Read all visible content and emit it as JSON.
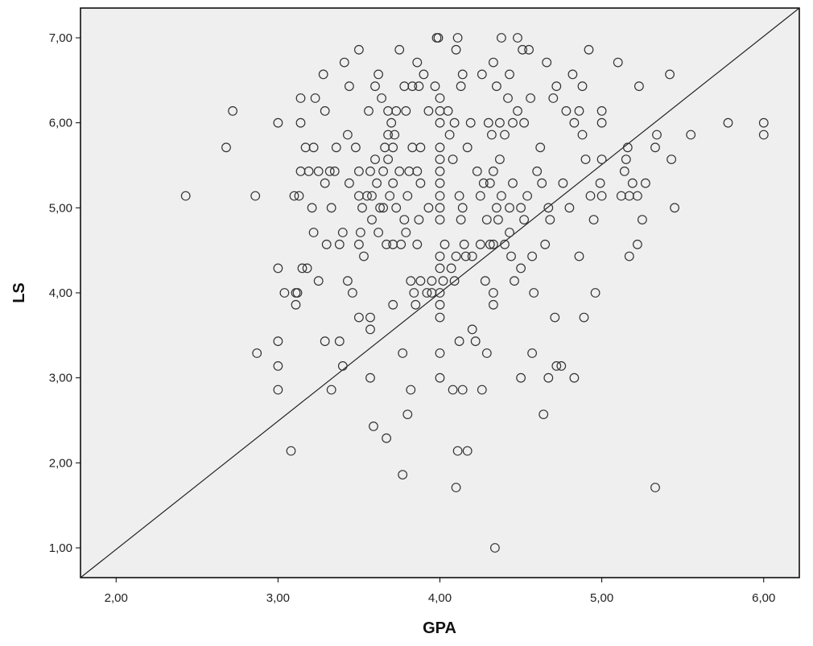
{
  "chart_data": {
    "type": "scatter",
    "title": "",
    "xlabel": "GPA",
    "ylabel": "LS",
    "xlim": [
      1.78,
      6.22
    ],
    "ylim": [
      0.65,
      7.35
    ],
    "x_ticks": [
      2,
      3,
      4,
      5,
      6
    ],
    "x_tick_labels": [
      "2,00",
      "3,00",
      "4,00",
      "5,00",
      "6,00"
    ],
    "y_ticks": [
      1,
      2,
      3,
      4,
      5,
      6,
      7
    ],
    "y_tick_labels": [
      "1,00",
      "2,00",
      "3,00",
      "4,00",
      "5,00",
      "6,00",
      "7,00"
    ],
    "grid": false,
    "reference_line": {
      "from": [
        1.78,
        0.65
      ],
      "to": [
        6.22,
        7.35
      ]
    },
    "colors": {
      "plot_background": "#efefef",
      "marker_stroke": "#333333",
      "line": "#222222"
    },
    "points": [
      [
        2.43,
        5.14
      ],
      [
        2.68,
        5.71
      ],
      [
        2.72,
        6.14
      ],
      [
        2.86,
        5.14
      ],
      [
        2.87,
        3.29
      ],
      [
        3.0,
        6.0
      ],
      [
        3.0,
        4.29
      ],
      [
        3.0,
        3.43
      ],
      [
        3.0,
        3.14
      ],
      [
        3.0,
        2.86
      ],
      [
        3.04,
        4.0
      ],
      [
        3.08,
        2.14
      ],
      [
        3.1,
        5.14
      ],
      [
        3.11,
        4.0
      ],
      [
        3.11,
        3.86
      ],
      [
        3.12,
        4.0
      ],
      [
        3.13,
        5.14
      ],
      [
        3.14,
        6.29
      ],
      [
        3.14,
        5.43
      ],
      [
        3.14,
        6.0
      ],
      [
        3.15,
        4.29
      ],
      [
        3.17,
        5.71
      ],
      [
        3.18,
        4.29
      ],
      [
        3.19,
        5.43
      ],
      [
        3.21,
        5.0
      ],
      [
        3.22,
        5.71
      ],
      [
        3.22,
        4.71
      ],
      [
        3.23,
        6.29
      ],
      [
        3.25,
        4.14
      ],
      [
        3.25,
        5.43
      ],
      [
        3.28,
        6.57
      ],
      [
        3.29,
        3.43
      ],
      [
        3.29,
        5.29
      ],
      [
        3.29,
        6.14
      ],
      [
        3.3,
        4.57
      ],
      [
        3.32,
        5.43
      ],
      [
        3.33,
        2.86
      ],
      [
        3.33,
        5.0
      ],
      [
        3.35,
        5.43
      ],
      [
        3.36,
        5.71
      ],
      [
        3.38,
        4.57
      ],
      [
        3.38,
        3.43
      ],
      [
        3.4,
        4.71
      ],
      [
        3.4,
        3.14
      ],
      [
        3.41,
        6.71
      ],
      [
        3.43,
        5.86
      ],
      [
        3.43,
        4.14
      ],
      [
        3.44,
        5.29
      ],
      [
        3.44,
        6.43
      ],
      [
        3.46,
        4.0
      ],
      [
        3.48,
        5.71
      ],
      [
        3.5,
        6.86
      ],
      [
        3.5,
        5.14
      ],
      [
        3.5,
        5.43
      ],
      [
        3.5,
        4.57
      ],
      [
        3.5,
        3.71
      ],
      [
        3.51,
        4.71
      ],
      [
        3.52,
        5.0
      ],
      [
        3.53,
        4.43
      ],
      [
        3.55,
        5.14
      ],
      [
        3.56,
        6.14
      ],
      [
        3.57,
        3.71
      ],
      [
        3.57,
        3.57
      ],
      [
        3.57,
        3.0
      ],
      [
        3.57,
        5.43
      ],
      [
        3.58,
        4.86
      ],
      [
        3.58,
        5.14
      ],
      [
        3.59,
        2.43
      ],
      [
        3.6,
        6.43
      ],
      [
        3.6,
        5.57
      ],
      [
        3.61,
        5.29
      ],
      [
        3.62,
        4.71
      ],
      [
        3.62,
        6.57
      ],
      [
        3.63,
        5.0
      ],
      [
        3.64,
        6.29
      ],
      [
        3.65,
        5.43
      ],
      [
        3.65,
        5.0
      ],
      [
        3.66,
        5.71
      ],
      [
        3.67,
        4.57
      ],
      [
        3.67,
        2.29
      ],
      [
        3.68,
        5.57
      ],
      [
        3.68,
        6.14
      ],
      [
        3.68,
        5.86
      ],
      [
        3.69,
        5.14
      ],
      [
        3.7,
        6.0
      ],
      [
        3.71,
        5.71
      ],
      [
        3.71,
        5.29
      ],
      [
        3.71,
        3.86
      ],
      [
        3.71,
        4.57
      ],
      [
        3.72,
        5.86
      ],
      [
        3.73,
        5.0
      ],
      [
        3.73,
        6.14
      ],
      [
        3.75,
        6.86
      ],
      [
        3.75,
        5.43
      ],
      [
        3.76,
        4.57
      ],
      [
        3.77,
        3.29
      ],
      [
        3.77,
        1.86
      ],
      [
        3.78,
        6.43
      ],
      [
        3.78,
        4.86
      ],
      [
        3.79,
        4.71
      ],
      [
        3.79,
        6.14
      ],
      [
        3.8,
        5.14
      ],
      [
        3.8,
        2.57
      ],
      [
        3.81,
        5.43
      ],
      [
        3.82,
        4.14
      ],
      [
        3.82,
        2.86
      ],
      [
        3.83,
        6.43
      ],
      [
        3.83,
        5.71
      ],
      [
        3.84,
        4.0
      ],
      [
        3.85,
        3.86
      ],
      [
        3.86,
        5.43
      ],
      [
        3.86,
        4.57
      ],
      [
        3.86,
        6.71
      ],
      [
        3.87,
        4.86
      ],
      [
        3.87,
        6.43
      ],
      [
        3.88,
        5.29
      ],
      [
        3.88,
        5.71
      ],
      [
        3.88,
        4.14
      ],
      [
        3.9,
        6.57
      ],
      [
        3.92,
        4.0
      ],
      [
        3.93,
        6.14
      ],
      [
        3.93,
        5.0
      ],
      [
        3.95,
        4.0
      ],
      [
        3.95,
        4.14
      ],
      [
        3.97,
        6.43
      ],
      [
        3.98,
        7.0
      ],
      [
        3.99,
        7.0
      ],
      [
        4.0,
        6.14
      ],
      [
        4.0,
        5.57
      ],
      [
        4.0,
        5.43
      ],
      [
        4.0,
        5.29
      ],
      [
        4.0,
        5.14
      ],
      [
        4.0,
        4.86
      ],
      [
        4.0,
        4.43
      ],
      [
        4.0,
        4.29
      ],
      [
        4.0,
        4.0
      ],
      [
        4.0,
        3.86
      ],
      [
        4.0,
        3.71
      ],
      [
        4.0,
        3.29
      ],
      [
        4.0,
        3.0
      ],
      [
        4.0,
        6.29
      ],
      [
        4.0,
        6.0
      ],
      [
        4.0,
        5.71
      ],
      [
        4.0,
        5.0
      ],
      [
        4.02,
        4.14
      ],
      [
        4.03,
        4.57
      ],
      [
        4.05,
        6.14
      ],
      [
        4.06,
        5.86
      ],
      [
        4.07,
        4.29
      ],
      [
        4.08,
        5.57
      ],
      [
        4.08,
        2.86
      ],
      [
        4.09,
        6.0
      ],
      [
        4.09,
        4.14
      ],
      [
        4.1,
        4.43
      ],
      [
        4.1,
        6.86
      ],
      [
        4.1,
        1.71
      ],
      [
        4.11,
        7.0
      ],
      [
        4.11,
        2.14
      ],
      [
        4.12,
        3.43
      ],
      [
        4.12,
        5.14
      ],
      [
        4.13,
        6.43
      ],
      [
        4.13,
        4.86
      ],
      [
        4.14,
        6.57
      ],
      [
        4.14,
        5.0
      ],
      [
        4.14,
        2.86
      ],
      [
        4.15,
        4.57
      ],
      [
        4.16,
        4.43
      ],
      [
        4.17,
        5.71
      ],
      [
        4.17,
        2.14
      ],
      [
        4.19,
        6.0
      ],
      [
        4.2,
        3.57
      ],
      [
        4.2,
        4.43
      ],
      [
        4.22,
        3.43
      ],
      [
        4.23,
        5.43
      ],
      [
        4.25,
        4.57
      ],
      [
        4.25,
        5.14
      ],
      [
        4.26,
        2.86
      ],
      [
        4.26,
        6.57
      ],
      [
        4.27,
        5.29
      ],
      [
        4.28,
        4.14
      ],
      [
        4.29,
        4.86
      ],
      [
        4.29,
        3.29
      ],
      [
        4.3,
        6.0
      ],
      [
        4.31,
        5.29
      ],
      [
        4.31,
        4.57
      ],
      [
        4.32,
        5.86
      ],
      [
        4.33,
        5.43
      ],
      [
        4.33,
        4.57
      ],
      [
        4.33,
        6.71
      ],
      [
        4.33,
        3.86
      ],
      [
        4.33,
        4.0
      ],
      [
        4.34,
        1.0
      ],
      [
        4.35,
        5.0
      ],
      [
        4.35,
        6.43
      ],
      [
        4.36,
        4.86
      ],
      [
        4.37,
        6.0
      ],
      [
        4.37,
        5.57
      ],
      [
        4.38,
        7.0
      ],
      [
        4.38,
        5.14
      ],
      [
        4.4,
        5.86
      ],
      [
        4.4,
        4.57
      ],
      [
        4.42,
        6.29
      ],
      [
        4.43,
        5.0
      ],
      [
        4.43,
        4.71
      ],
      [
        4.43,
        6.57
      ],
      [
        4.44,
        4.43
      ],
      [
        4.45,
        6.0
      ],
      [
        4.45,
        5.29
      ],
      [
        4.46,
        4.14
      ],
      [
        4.48,
        7.0
      ],
      [
        4.48,
        6.14
      ],
      [
        4.5,
        5.0
      ],
      [
        4.5,
        4.29
      ],
      [
        4.5,
        3.0
      ],
      [
        4.51,
        6.86
      ],
      [
        4.52,
        4.86
      ],
      [
        4.52,
        6.0
      ],
      [
        4.54,
        5.14
      ],
      [
        4.55,
        6.86
      ],
      [
        4.56,
        6.29
      ],
      [
        4.57,
        3.29
      ],
      [
        4.57,
        4.43
      ],
      [
        4.58,
        4.0
      ],
      [
        4.6,
        5.43
      ],
      [
        4.62,
        5.71
      ],
      [
        4.63,
        5.29
      ],
      [
        4.64,
        2.57
      ],
      [
        4.65,
        4.57
      ],
      [
        4.66,
        6.71
      ],
      [
        4.67,
        5.0
      ],
      [
        4.67,
        3.0
      ],
      [
        4.68,
        4.86
      ],
      [
        4.7,
        6.29
      ],
      [
        4.71,
        3.71
      ],
      [
        4.72,
        6.43
      ],
      [
        4.72,
        3.14
      ],
      [
        4.75,
        3.14
      ],
      [
        4.76,
        5.29
      ],
      [
        4.78,
        6.14
      ],
      [
        4.8,
        5.0
      ],
      [
        4.82,
        6.57
      ],
      [
        4.83,
        3.0
      ],
      [
        4.83,
        6.0
      ],
      [
        4.86,
        4.43
      ],
      [
        4.86,
        6.14
      ],
      [
        4.88,
        6.43
      ],
      [
        4.88,
        5.86
      ],
      [
        4.89,
        3.71
      ],
      [
        4.9,
        5.57
      ],
      [
        4.92,
        6.86
      ],
      [
        4.93,
        5.14
      ],
      [
        4.95,
        4.86
      ],
      [
        4.96,
        4.0
      ],
      [
        4.99,
        5.29
      ],
      [
        5.0,
        5.14
      ],
      [
        5.0,
        6.14
      ],
      [
        5.0,
        5.57
      ],
      [
        5.0,
        6.0
      ],
      [
        5.1,
        6.71
      ],
      [
        5.12,
        5.14
      ],
      [
        5.14,
        5.43
      ],
      [
        5.15,
        5.57
      ],
      [
        5.16,
        5.71
      ],
      [
        5.17,
        5.14
      ],
      [
        5.17,
        4.43
      ],
      [
        5.19,
        5.29
      ],
      [
        5.22,
        5.14
      ],
      [
        5.22,
        4.57
      ],
      [
        5.23,
        6.43
      ],
      [
        5.25,
        4.86
      ],
      [
        5.27,
        5.29
      ],
      [
        5.33,
        1.71
      ],
      [
        5.33,
        5.71
      ],
      [
        5.34,
        5.86
      ],
      [
        5.42,
        6.57
      ],
      [
        5.43,
        5.57
      ],
      [
        5.45,
        5.0
      ],
      [
        5.55,
        5.86
      ],
      [
        5.78,
        6.0
      ],
      [
        6.0,
        6.0
      ],
      [
        6.0,
        5.86
      ]
    ]
  }
}
